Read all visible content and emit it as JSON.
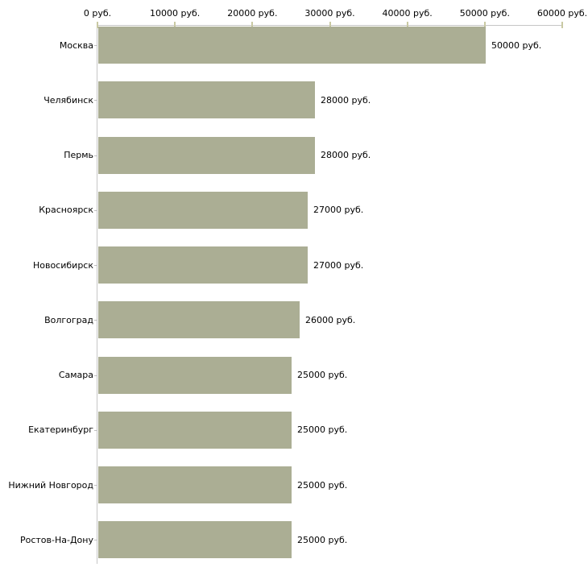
{
  "chart_data": {
    "type": "bar",
    "orientation": "horizontal",
    "title": "",
    "xlabel": "",
    "ylabel": "",
    "categories": [
      "Москва",
      "Челябинск",
      "Пермь",
      "Красноярск",
      "Новосибирск",
      "Волгоград",
      "Самара",
      "Екатеринбург",
      "Нижний Новгород",
      "Ростов-На-Дону"
    ],
    "values": [
      50000,
      28000,
      28000,
      27000,
      27000,
      26000,
      25000,
      25000,
      25000,
      25000
    ],
    "value_labels": [
      "50000 руб.",
      "28000 руб.",
      "28000 руб.",
      "27000 руб.",
      "27000 руб.",
      "26000 руб.",
      "25000 руб.",
      "25000 руб.",
      "25000 руб.",
      "25000 руб."
    ],
    "x_tick_labels": [
      "0 руб.",
      "10000 руб.",
      "20000 руб.",
      "30000 руб.",
      "40000 руб.",
      "50000 руб.",
      "60000 руб."
    ],
    "xlim": [
      0,
      60000
    ],
    "x_tick_step": 10000,
    "grid": false,
    "legend": false,
    "colors": {
      "bar": "#abae94",
      "axis_line": "#c6c6c6",
      "axis_tick": "#c9c9a3",
      "category_tick": "#c0c0c0",
      "text": "#000000",
      "background": "#ffffff"
    }
  }
}
